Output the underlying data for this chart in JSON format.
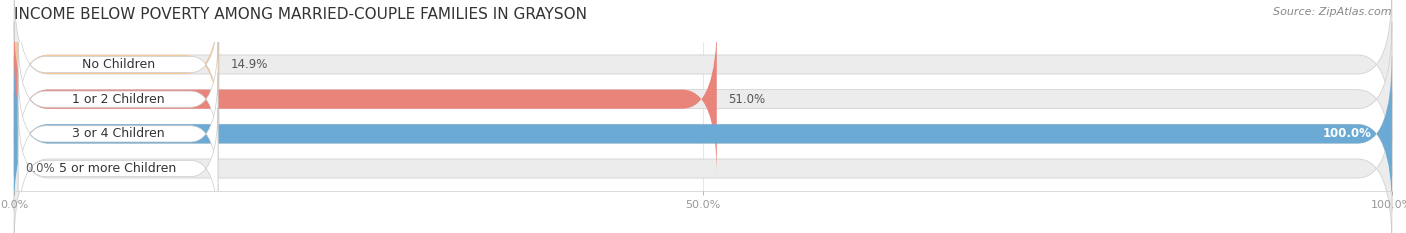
{
  "title": "INCOME BELOW POVERTY AMONG MARRIED-COUPLE FAMILIES IN GRAYSON",
  "source": "Source: ZipAtlas.com",
  "categories": [
    "No Children",
    "1 or 2 Children",
    "3 or 4 Children",
    "5 or more Children"
  ],
  "values": [
    14.9,
    51.0,
    100.0,
    0.0
  ],
  "bar_colors": [
    "#f5c897",
    "#e8847a",
    "#6aaad4",
    "#c9a8d4"
  ],
  "track_color": "#ececec",
  "xlim": [
    0,
    100
  ],
  "xticks": [
    0.0,
    50.0,
    100.0
  ],
  "xtick_labels": [
    "0.0%",
    "50.0%",
    "100.0%"
  ],
  "bar_height": 0.55,
  "figsize": [
    14.06,
    2.33
  ],
  "dpi": 100,
  "title_fontsize": 11,
  "label_fontsize": 9,
  "value_fontsize": 8.5,
  "source_fontsize": 8,
  "background_color": "#ffffff"
}
